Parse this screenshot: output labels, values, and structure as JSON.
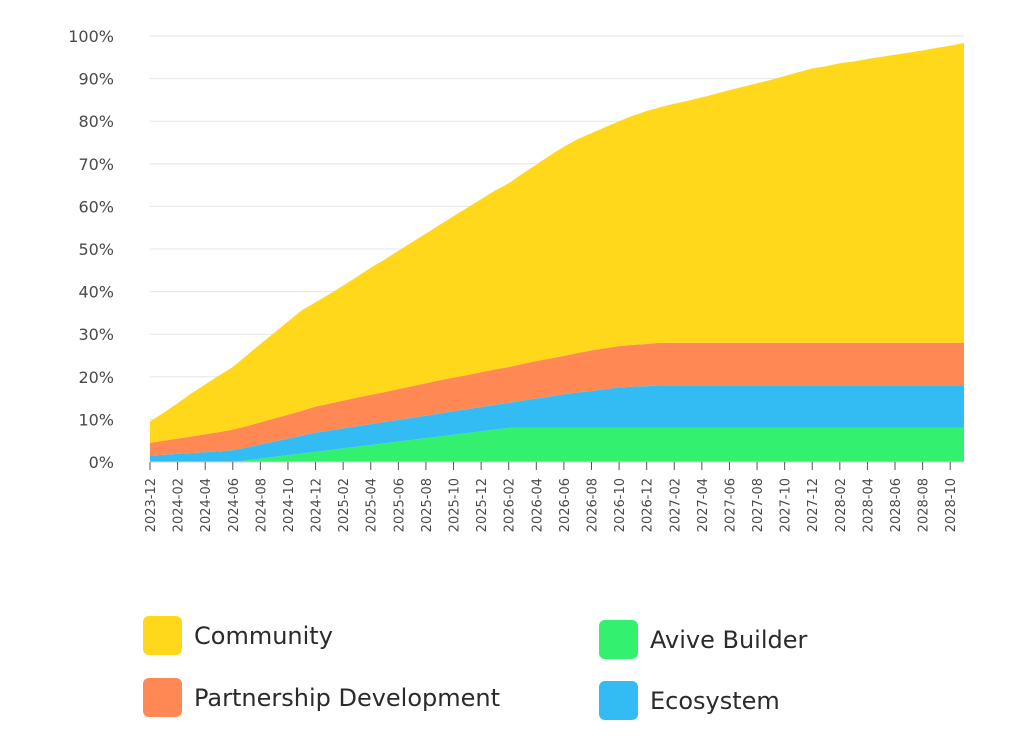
{
  "chart_data": {
    "type": "area",
    "stacked": true,
    "x": [
      "2023-12",
      "2024-01",
      "2024-02",
      "2024-03",
      "2024-04",
      "2024-05",
      "2024-06",
      "2024-07",
      "2024-08",
      "2024-09",
      "2024-10",
      "2024-11",
      "2024-12",
      "2025-01",
      "2025-02",
      "2025-03",
      "2025-04",
      "2025-05",
      "2025-06",
      "2025-07",
      "2025-08",
      "2025-09",
      "2025-10",
      "2025-11",
      "2025-12",
      "2026-01",
      "2026-02",
      "2026-03",
      "2026-04",
      "2026-05",
      "2026-06",
      "2026-07",
      "2026-08",
      "2026-09",
      "2026-10",
      "2026-11",
      "2026-12",
      "2027-01",
      "2027-02",
      "2027-03",
      "2027-04",
      "2027-05",
      "2027-06",
      "2027-07",
      "2027-08",
      "2027-09",
      "2027-10",
      "2027-11",
      "2027-12",
      "2028-01",
      "2028-02",
      "2028-03",
      "2028-04",
      "2028-05",
      "2028-06",
      "2028-07",
      "2028-08",
      "2028-09",
      "2028-10",
      "2028-11"
    ],
    "x_tick_labels": [
      "2023-12",
      "2024-02",
      "2024-04",
      "2024-06",
      "2024-08",
      "2024-10",
      "2024-12",
      "2025-02",
      "2025-04",
      "2025-06",
      "2025-08",
      "2025-10",
      "2025-12",
      "2026-02",
      "2026-04",
      "2026-06",
      "2026-08",
      "2026-10",
      "2026-12",
      "2027-02",
      "2027-04",
      "2027-06",
      "2027-08",
      "2027-10",
      "2027-12",
      "2028-02",
      "2028-04",
      "2028-06",
      "2028-08",
      "2028-10"
    ],
    "y_tick_labels": [
      "0%",
      "10%",
      "20%",
      "30%",
      "40%",
      "50%",
      "60%",
      "70%",
      "80%",
      "90%",
      "100%"
    ],
    "ylim": [
      0,
      100
    ],
    "grid": true,
    "legend_position": "bottom",
    "series": [
      {
        "name": "Avive Builder",
        "color": "#33f06e",
        "values": [
          0,
          0,
          0,
          0,
          0,
          0,
          0,
          0.4,
          0.8,
          1.2,
          1.6,
          2.0,
          2.4,
          2.8,
          3.2,
          3.6,
          4.0,
          4.4,
          4.8,
          5.2,
          5.6,
          6.0,
          6.4,
          6.8,
          7.2,
          7.6,
          8.0,
          8.0,
          8.0,
          8.0,
          8.0,
          8.0,
          8.0,
          8.0,
          8.0,
          8.0,
          8.0,
          8.0,
          8.0,
          8.0,
          8.0,
          8.0,
          8.0,
          8.0,
          8.0,
          8.0,
          8.0,
          8.0,
          8.0,
          8.0,
          8.0,
          8.0,
          8.0,
          8.0,
          8.0,
          8.0,
          8.0,
          8.0,
          8.0,
          8.0
        ]
      },
      {
        "name": "Ecosystem",
        "color": "#33bcf4",
        "values": [
          1.5,
          1.7,
          1.9,
          2.1,
          2.3,
          2.5,
          2.8,
          3.0,
          3.3,
          3.6,
          3.9,
          4.2,
          4.5,
          4.6,
          4.7,
          4.8,
          4.9,
          5.0,
          5.1,
          5.2,
          5.3,
          5.4,
          5.5,
          5.6,
          5.7,
          5.8,
          5.9,
          6.4,
          6.9,
          7.4,
          7.9,
          8.3,
          8.7,
          9.1,
          9.5,
          9.7,
          9.8,
          10,
          10,
          10,
          10,
          10,
          10,
          10,
          10,
          10,
          10,
          10,
          10,
          10,
          10,
          10,
          10,
          10,
          10,
          10,
          10,
          10,
          10,
          10
        ]
      },
      {
        "name": "Partnership Development",
        "color": "#ff8855",
        "values": [
          3.0,
          3.3,
          3.6,
          3.9,
          4.2,
          4.5,
          4.8,
          5.0,
          5.2,
          5.4,
          5.6,
          5.8,
          6.1,
          6.3,
          6.5,
          6.7,
          6.9,
          7.0,
          7.2,
          7.4,
          7.6,
          7.8,
          7.9,
          8.0,
          8.2,
          8.3,
          8.4,
          8.6,
          8.8,
          8.9,
          9.0,
          9.3,
          9.5,
          9.6,
          9.7,
          9.8,
          9.9,
          10,
          10,
          10,
          10,
          10,
          10,
          10,
          10,
          10,
          10,
          10,
          10,
          10,
          10,
          10,
          10,
          10,
          10,
          10,
          10,
          10,
          10,
          10
        ]
      },
      {
        "name": "Community",
        "color": "#ffd81b",
        "values": [
          5.0,
          6.6,
          8.3,
          10.1,
          11.7,
          13.3,
          14.7,
          16.6,
          18.4,
          20.1,
          21.9,
          23.6,
          24.5,
          25.7,
          27.0,
          28.4,
          29.8,
          31.1,
          32.5,
          33.8,
          35.1,
          36.5,
          37.9,
          39.3,
          40.6,
          42.0,
          43.1,
          44.7,
          46.1,
          47.7,
          49.1,
          50.2,
          51.0,
          51.9,
          52.8,
          53.8,
          54.7,
          55.3,
          56.1,
          56.8,
          57.6,
          58.4,
          59.3,
          60.1,
          60.9,
          61.7,
          62.6,
          63.5,
          64.4,
          64.9,
          65.6,
          66.0,
          66.6,
          67.1,
          67.6,
          68.1,
          68.6,
          69.2,
          69.7,
          70.4
        ]
      }
    ]
  },
  "legend": {
    "items": [
      {
        "label": "Community",
        "color": "#ffd81b"
      },
      {
        "label": "Avive Builder",
        "color": "#33f06e"
      },
      {
        "label": "Partnership Development",
        "color": "#ff8855"
      },
      {
        "label": "Ecosystem",
        "color": "#33bcf4"
      }
    ]
  }
}
